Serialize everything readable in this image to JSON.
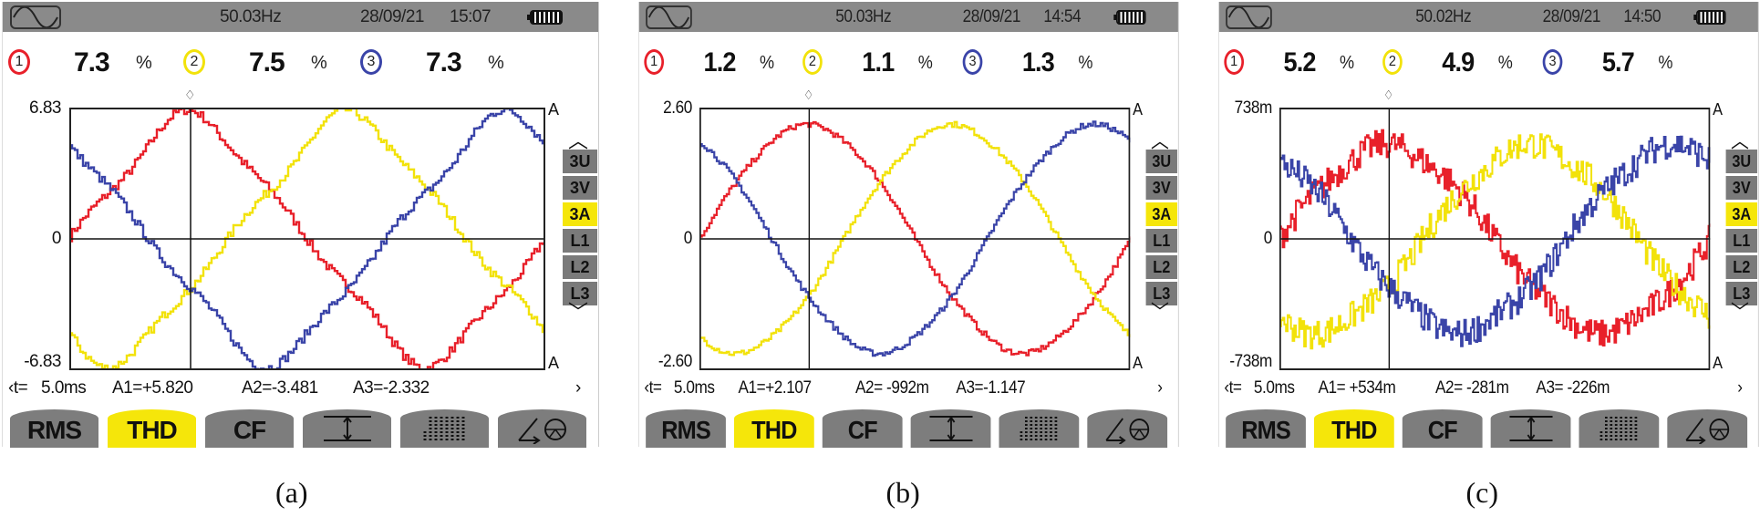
{
  "colors": {
    "phase1": "#e8202a",
    "phase2": "#f2e20a",
    "phase3": "#3a44a8",
    "active": "#f5e60a",
    "button": "#7d7d7d",
    "header": "#8a8a8a"
  },
  "panels": [
    {
      "caption": "(a)",
      "header": {
        "icon": "sine-wave-icon",
        "frequency": "50.03Hz",
        "date": "28/09/21",
        "time": "15:07",
        "battery": "battery-full-icon"
      },
      "phases": [
        {
          "label": "1",
          "value": "7.3",
          "unit": "%"
        },
        {
          "label": "2",
          "value": "7.5",
          "unit": "%"
        },
        {
          "label": "3",
          "value": "7.3",
          "unit": "%"
        }
      ],
      "y_axis": {
        "max": "6.83",
        "zero": "0",
        "min": "-6.83",
        "unit": "A"
      },
      "readout": {
        "t_label": "‹t=",
        "t_value": "5.0ms",
        "a1": "A1=+5.820",
        "a2": "A2=-3.481",
        "a3": "A3=-2.332",
        "next": "›"
      }
    },
    {
      "caption": "(b)",
      "header": {
        "icon": "sine-wave-icon",
        "frequency": "50.03Hz",
        "date": "28/09/21",
        "time": "14:54",
        "battery": "battery-full-icon"
      },
      "phases": [
        {
          "label": "1",
          "value": "1.2",
          "unit": "%"
        },
        {
          "label": "2",
          "value": "1.1",
          "unit": "%"
        },
        {
          "label": "3",
          "value": "1.3",
          "unit": "%"
        }
      ],
      "y_axis": {
        "max": "2.60",
        "zero": "0",
        "min": "-2.60",
        "unit": "A"
      },
      "readout": {
        "t_label": "‹t=",
        "t_value": "5.0ms",
        "a1": "A1=+2.107",
        "a2": "A2= -992m",
        "a3": "A3=-1.147",
        "next": "›"
      }
    },
    {
      "caption": "(c)",
      "header": {
        "icon": "sine-wave-icon",
        "frequency": "50.02Hz",
        "date": "28/09/21",
        "time": "14:50",
        "battery": "battery-full-icon"
      },
      "phases": [
        {
          "label": "1",
          "value": "5.2",
          "unit": "%"
        },
        {
          "label": "2",
          "value": "4.9",
          "unit": "%"
        },
        {
          "label": "3",
          "value": "5.7",
          "unit": "%"
        }
      ],
      "y_axis": {
        "max": "738m",
        "zero": "0",
        "min": "-738m",
        "unit": "A"
      },
      "readout": {
        "t_label": "‹t=",
        "t_value": "5.0ms",
        "a1": "A1= +534m",
        "a2": "A2= -281m",
        "a3": "A3= -226m",
        "next": "›"
      }
    }
  ],
  "side_buttons": [
    {
      "label": "3U",
      "active": false
    },
    {
      "label": "3V",
      "active": false
    },
    {
      "label": "3A",
      "active": true
    },
    {
      "label": "L1",
      "active": false
    },
    {
      "label": "L2",
      "active": false
    },
    {
      "label": "L3",
      "active": false
    }
  ],
  "function_buttons": [
    {
      "label": "RMS",
      "active": false
    },
    {
      "label": "THD",
      "active": true
    },
    {
      "label": "CF",
      "active": false
    },
    {
      "label": "",
      "icon": "cursor-measure-icon",
      "active": false
    },
    {
      "label": "",
      "icon": "harmonics-bars-icon",
      "active": false
    },
    {
      "label": "",
      "icon": "phasor-diagram-icon",
      "active": false
    }
  ]
}
